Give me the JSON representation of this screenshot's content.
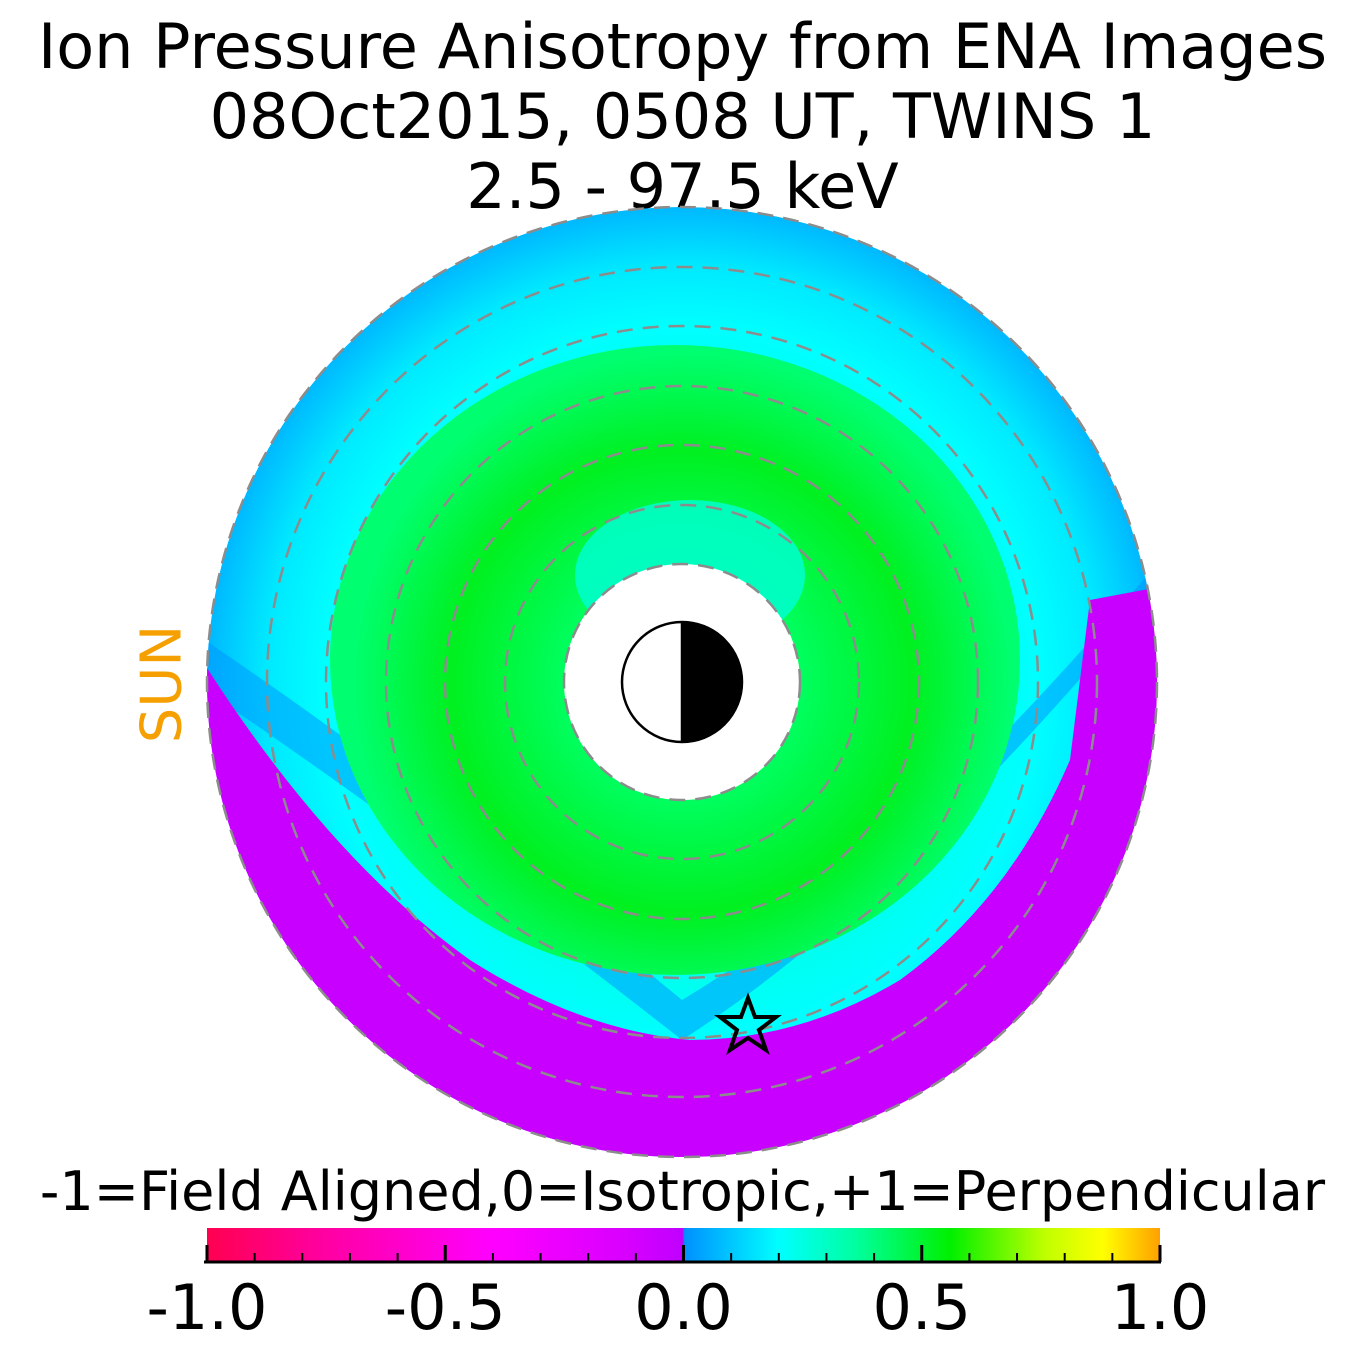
{
  "chart_data": {
    "type": "heatmap",
    "title": [
      "Ion Pressure Anisotropy from  ENA Images",
      "08Oct2015, 0508 UT,  TWINS 1",
      "2.5 - 97.5 keV"
    ],
    "side_label": "SUN",
    "colorbar": {
      "label": "-1=Field Aligned,0=Isotropic,+1=Perpendicular",
      "range": [
        -1.0,
        1.0
      ],
      "tick_labels": [
        {
          "value": -1.0,
          "label": "-1.0"
        },
        {
          "value": -0.5,
          "label": "-0.5"
        },
        {
          "value": 0.0,
          "label": "0.0"
        },
        {
          "value": 0.5,
          "label": "0.5"
        },
        {
          "value": 1.0,
          "label": "1.0"
        }
      ],
      "colors": [
        "#ff0050",
        "#ff00c0",
        "#ff00ff",
        "#c800ff",
        "#0090ff",
        "#00ffff",
        "#00ff90",
        "#00f000",
        "#c0ff00",
        "#ffff00",
        "#ffa000"
      ]
    },
    "grid": "dashed concentric circles",
    "colors": {
      "sun_label": "#f5a000",
      "ring_lines": "#8c8c8c",
      "field_aligned_region": "#c800ff",
      "isotropic_region": "#00ffff",
      "moderate_region": "#00f000"
    },
    "markers": {
      "earth": "day-night earth symbol",
      "spacecraft": "star"
    }
  }
}
